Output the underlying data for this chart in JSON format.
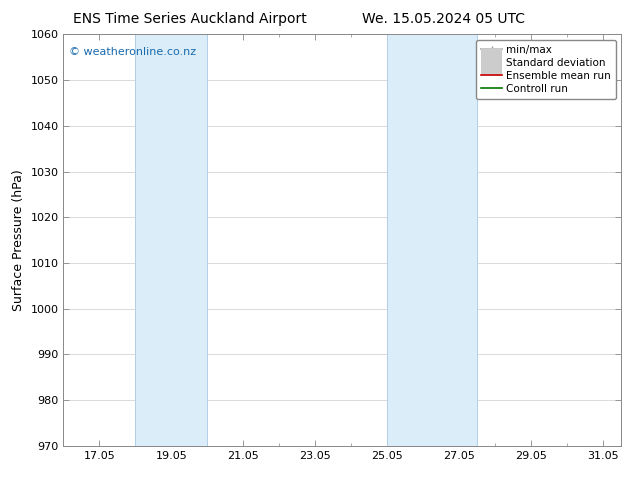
{
  "title_left": "ENS Time Series Auckland Airport",
  "title_right": "We. 15.05.2024 05 UTC",
  "ylabel": "Surface Pressure (hPa)",
  "ylim": [
    970,
    1060
  ],
  "yticks": [
    970,
    980,
    990,
    1000,
    1010,
    1020,
    1030,
    1040,
    1050,
    1060
  ],
  "xlim_start": 16.0,
  "xlim_end": 31.5,
  "xtick_labels": [
    "17.05",
    "19.05",
    "21.05",
    "23.05",
    "25.05",
    "27.05",
    "29.05",
    "31.05"
  ],
  "xtick_positions": [
    17.0,
    19.0,
    21.0,
    23.0,
    25.0,
    27.0,
    29.0,
    31.0
  ],
  "shaded_bands": [
    {
      "x_start": 18.0,
      "x_end": 20.0
    },
    {
      "x_start": 25.0,
      "x_end": 27.5
    }
  ],
  "shaded_color": "#daedf8",
  "band_edge_color": "#b0d0e8",
  "watermark_text": "© weatheronline.co.nz",
  "watermark_color": "#1a6aad",
  "legend_entries": [
    {
      "label": "min/max",
      "color": "#999999",
      "lw": 1.2,
      "style": "line_with_bar"
    },
    {
      "label": "Standard deviation",
      "color": "#cccccc",
      "lw": 5,
      "style": "thick"
    },
    {
      "label": "Ensemble mean run",
      "color": "#cc0000",
      "lw": 1.2,
      "style": "solid"
    },
    {
      "label": "Controll run",
      "color": "#007700",
      "lw": 1.2,
      "style": "solid"
    }
  ],
  "bg_color": "#ffffff",
  "plot_bg_color": "#ffffff",
  "grid_color": "#cccccc",
  "spine_color": "#888888",
  "title_fontsize": 10,
  "label_fontsize": 9,
  "tick_fontsize": 8,
  "legend_fontsize": 7.5
}
